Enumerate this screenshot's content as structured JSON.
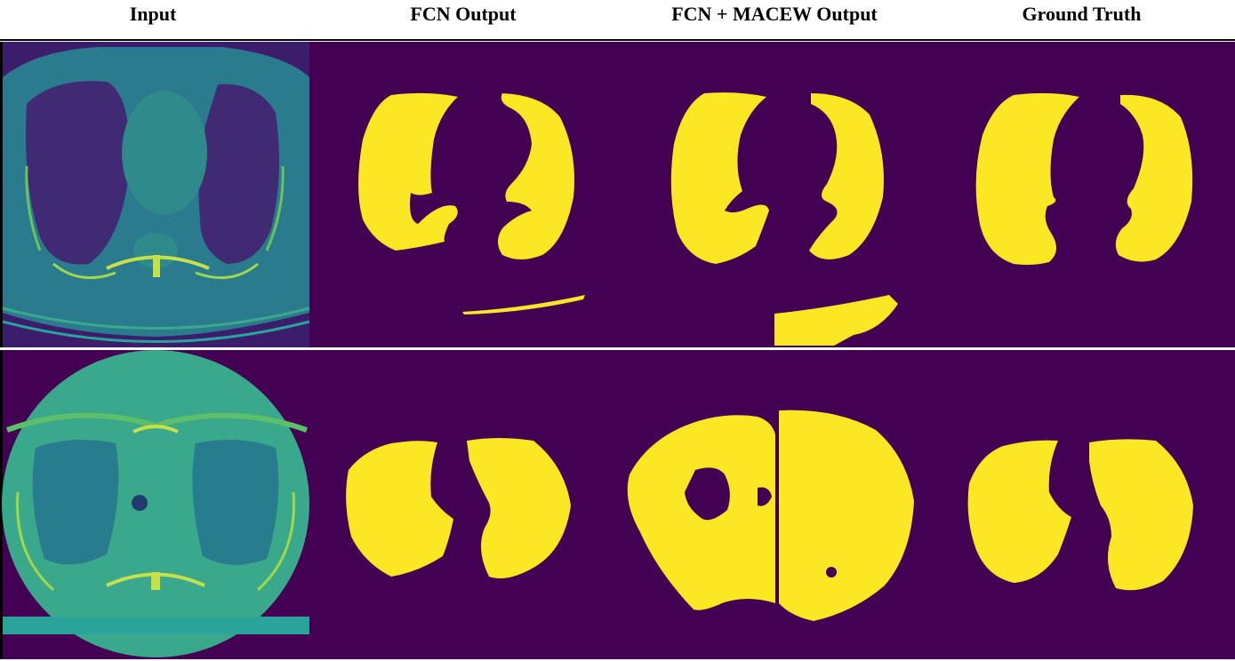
{
  "columns": [
    {
      "label": "Input"
    },
    {
      "label": "FCN Output"
    },
    {
      "label": "FCN + MACEW Output"
    },
    {
      "label": "Ground Truth"
    }
  ],
  "colors": {
    "background": "#440154",
    "mask": "#fde725",
    "scan_body": "#2a7b8e",
    "scan_body_row2": "#3aa88a",
    "scan_lung": "#3f2a73",
    "scan_lung_row2": "#277d8e",
    "scan_bone": "#c5e04a"
  },
  "rows": [
    {
      "name": "row-1"
    },
    {
      "name": "row-2"
    }
  ]
}
